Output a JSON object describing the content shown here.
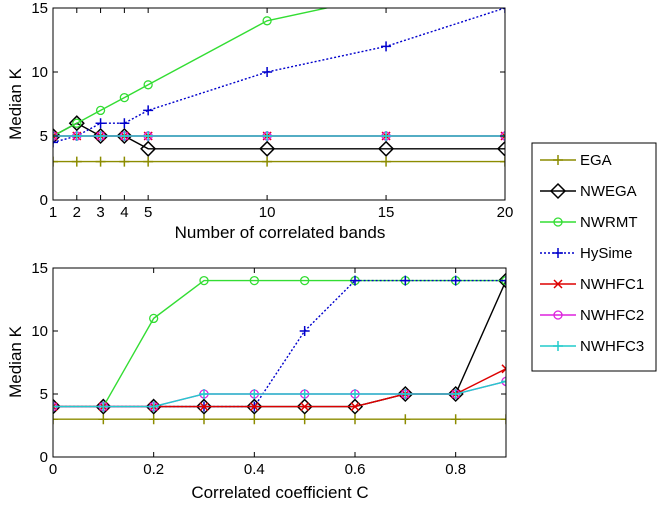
{
  "chart_data": [
    {
      "type": "line",
      "xlabel": "Number of correlated bands",
      "ylabel": "Median K",
      "xlim": [
        1,
        20
      ],
      "ylim": [
        0,
        15
      ],
      "xticks": [
        1,
        2,
        3,
        4,
        5,
        10,
        15,
        20
      ],
      "yticks": [
        0,
        5,
        10,
        15
      ],
      "x": [
        1,
        2,
        3,
        4,
        5,
        10,
        15,
        20
      ],
      "series": [
        {
          "name": "EGA",
          "values": [
            3,
            3,
            3,
            3,
            3,
            3,
            3,
            3
          ]
        },
        {
          "name": "NWEGA",
          "values": [
            5,
            6,
            5,
            5,
            4,
            4,
            4,
            4
          ]
        },
        {
          "name": "NWRMT",
          "values": [
            5,
            6,
            7,
            8,
            9,
            14,
            16,
            17
          ]
        },
        {
          "name": "HySime",
          "values": [
            4.5,
            5,
            6,
            6,
            7,
            10,
            12,
            15
          ]
        },
        {
          "name": "NWHFC1",
          "values": [
            5,
            5,
            5,
            5,
            5,
            5,
            5,
            5
          ]
        },
        {
          "name": "NWHFC2",
          "values": [
            5,
            5,
            5,
            5,
            5,
            5,
            5,
            5
          ]
        },
        {
          "name": "NWHFC3",
          "values": [
            5,
            5,
            5,
            5,
            5,
            5,
            5,
            5
          ]
        }
      ]
    },
    {
      "type": "line",
      "xlabel": "Correlated coefficient C",
      "ylabel": "Median K",
      "xlim": [
        0,
        0.9
      ],
      "ylim": [
        0,
        15
      ],
      "xticks": [
        "0",
        "0.2",
        "0.4",
        "0.6",
        "0.8"
      ],
      "yticks": [
        0,
        5,
        10,
        15
      ],
      "x": [
        0,
        0.1,
        0.2,
        0.3,
        0.4,
        0.5,
        0.6,
        0.7,
        0.8,
        0.9
      ],
      "series": [
        {
          "name": "EGA",
          "values": [
            3,
            3,
            3,
            3,
            3,
            3,
            3,
            3,
            3,
            3
          ]
        },
        {
          "name": "NWEGA",
          "values": [
            4,
            4,
            4,
            4,
            4,
            4,
            4,
            5,
            5,
            14
          ]
        },
        {
          "name": "NWRMT",
          "values": [
            4,
            4,
            11,
            14,
            14,
            14,
            14,
            14,
            14,
            14
          ]
        },
        {
          "name": "HySime",
          "values": [
            4,
            4,
            4,
            4,
            4,
            10,
            14,
            14,
            14,
            14
          ]
        },
        {
          "name": "NWHFC1",
          "values": [
            4,
            4,
            4,
            4,
            4,
            4,
            4,
            5,
            5,
            7
          ]
        },
        {
          "name": "NWHFC2",
          "values": [
            4,
            4,
            4,
            5,
            5,
            5,
            5,
            5,
            5,
            6
          ]
        },
        {
          "name": "NWHFC3",
          "values": [
            4,
            4,
            4,
            5,
            5,
            5,
            5,
            5,
            5,
            6
          ]
        }
      ]
    }
  ],
  "legend": {
    "items": [
      {
        "label": "EGA",
        "color": "#8c8c00",
        "marker": "plus",
        "dash": "solid"
      },
      {
        "label": "NWEGA",
        "color": "#000000",
        "marker": "diamond",
        "dash": "solid"
      },
      {
        "label": "NWRMT",
        "color": "#33dd33",
        "marker": "circle",
        "dash": "solid"
      },
      {
        "label": "HySime",
        "color": "#0000cc",
        "marker": "plus",
        "dash": "dotted"
      },
      {
        "label": "NWHFC1",
        "color": "#dd0000",
        "marker": "x",
        "dash": "solid"
      },
      {
        "label": "NWHFC2",
        "color": "#dd22dd",
        "marker": "circle",
        "dash": "solid"
      },
      {
        "label": "NWHFC3",
        "color": "#22cccc",
        "marker": "plus",
        "dash": "solid"
      }
    ]
  }
}
